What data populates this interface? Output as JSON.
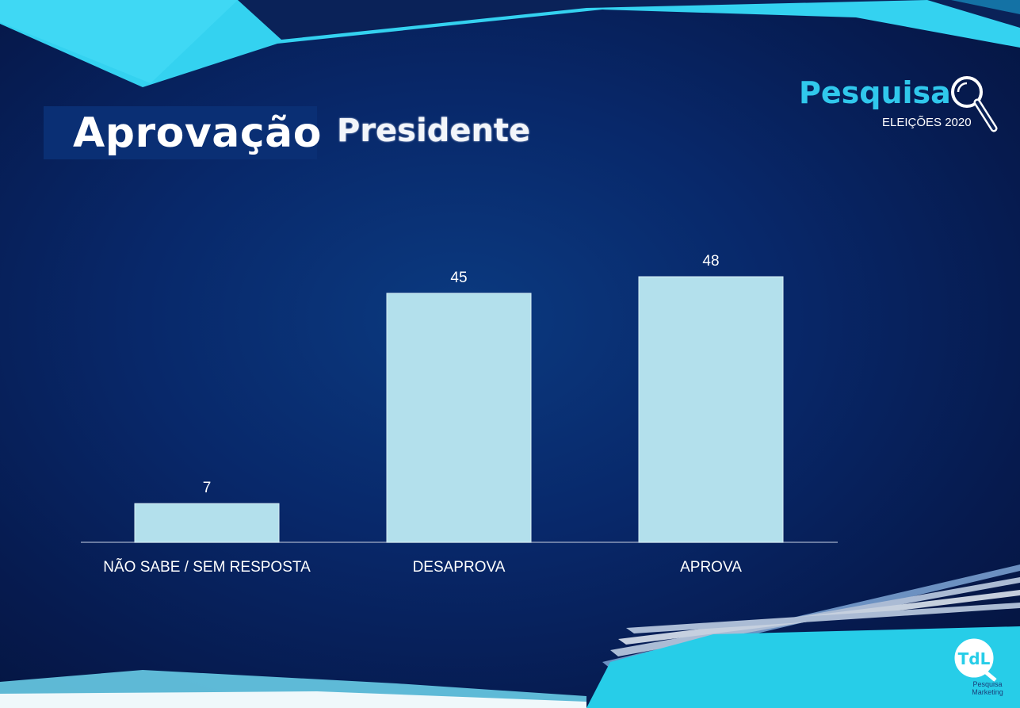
{
  "header": {
    "title": "Aprovação",
    "subtitle": "Presidente"
  },
  "brand": {
    "name": "Pesquisa",
    "tagline": "ELEIÇÕES 2020",
    "icon": "magnifier-icon"
  },
  "footer_logo": {
    "mark": "TdL",
    "caption_line1": "Pesquisa",
    "caption_line2": "Marketing"
  },
  "colors": {
    "bar": "#b3e0ec",
    "label": "#ffffff",
    "baseline": "#8a98b8",
    "accent": "#30c8ec"
  },
  "chart_data": {
    "type": "bar",
    "categories": [
      "NÃO SABE / SEM RESPOSTA",
      "DESAPROVA",
      "APROVA"
    ],
    "values": [
      7,
      45,
      48
    ],
    "data_labels": [
      "7",
      "45",
      "48"
    ],
    "title": "",
    "xlabel": "",
    "ylabel": "",
    "ylim": [
      0,
      48
    ],
    "grid": false,
    "legend": "none"
  }
}
